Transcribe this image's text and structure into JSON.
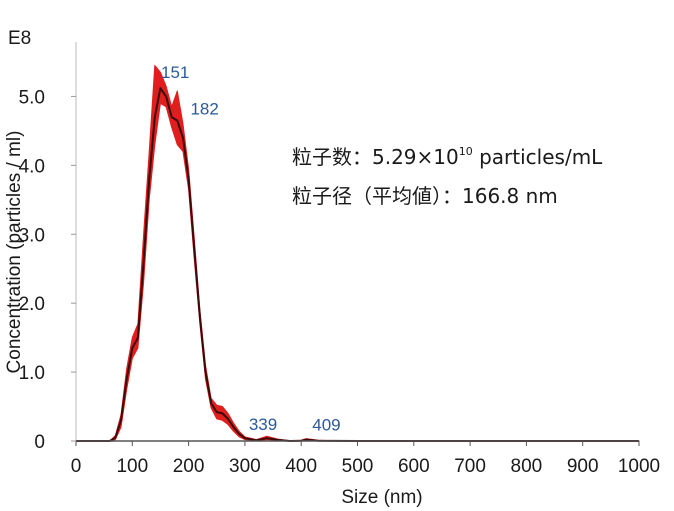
{
  "chart_data": {
    "type": "area",
    "xlabel": "Size (nm)",
    "ylabel": "Concentration (particles / ml)",
    "y_multiplier": "E8",
    "xlim": [
      0,
      1000
    ],
    "ylim": [
      0,
      5.5
    ],
    "x_ticks": [
      "0",
      "100",
      "200",
      "300",
      "400",
      "500",
      "600",
      "700",
      "800",
      "900",
      "1000"
    ],
    "y_ticks": [
      {
        "value": 0,
        "label": "0"
      },
      {
        "value": 1,
        "label": "1.0"
      },
      {
        "value": 2,
        "label": "2.0"
      },
      {
        "value": 3,
        "label": "3.0"
      },
      {
        "value": 4,
        "label": "4.0"
      },
      {
        "value": 5,
        "label": "5.0"
      }
    ],
    "grid": false,
    "colors": {
      "mean": "#3b0a0a",
      "band": "#e01e1e",
      "peak_label": "#2a5a9a"
    },
    "series": [
      {
        "x": [
          0,
          60,
          70,
          80,
          90,
          100,
          110,
          120,
          130,
          140,
          150,
          160,
          170,
          180,
          190,
          200,
          210,
          220,
          230,
          240,
          250,
          260,
          270,
          280,
          290,
          300,
          320,
          339,
          360,
          380,
          400,
          409,
          430,
          460,
          500,
          1000
        ],
        "mean": [
          0,
          0,
          0.05,
          0.3,
          0.9,
          1.35,
          1.5,
          2.6,
          3.8,
          4.7,
          5.12,
          5.0,
          4.7,
          4.65,
          4.4,
          3.8,
          2.8,
          1.8,
          1.0,
          0.55,
          0.42,
          0.4,
          0.32,
          0.2,
          0.1,
          0.04,
          0.01,
          0.04,
          0.015,
          0,
          0.005,
          0.02,
          0.005,
          0.002,
          0,
          0
        ],
        "upper": [
          0,
          0,
          0.08,
          0.38,
          1.05,
          1.5,
          1.7,
          3.0,
          4.2,
          5.45,
          5.35,
          5.15,
          4.85,
          5.08,
          4.6,
          3.95,
          2.95,
          1.9,
          1.1,
          0.62,
          0.52,
          0.5,
          0.4,
          0.26,
          0.14,
          0.06,
          0.02,
          0.07,
          0.025,
          0.005,
          0.012,
          0.035,
          0.01,
          0.004,
          0,
          0
        ],
        "lower": [
          0,
          0,
          0.02,
          0.2,
          0.75,
          1.2,
          1.35,
          2.3,
          3.5,
          4.3,
          4.9,
          4.85,
          4.55,
          4.3,
          4.2,
          3.65,
          2.65,
          1.7,
          0.9,
          0.48,
          0.32,
          0.3,
          0.24,
          0.14,
          0.06,
          0.02,
          0,
          0.02,
          0.005,
          0,
          0,
          0.01,
          0,
          0,
          0,
          0
        ]
      }
    ],
    "peak_labels": [
      {
        "x": 151,
        "y": 5.12,
        "text": "151"
      },
      {
        "x": 182,
        "y": 4.65,
        "text": "182"
      },
      {
        "x": 339,
        "y": 0.04,
        "text": "339"
      },
      {
        "x": 409,
        "y": 0.02,
        "text": "409"
      }
    ]
  },
  "annotation": {
    "line1_prefix": "粒子数：5.29×10",
    "line1_exp": "10",
    "line1_suffix": " particles/mL",
    "line2": "粒子径（平均値）：166.8 nm"
  }
}
